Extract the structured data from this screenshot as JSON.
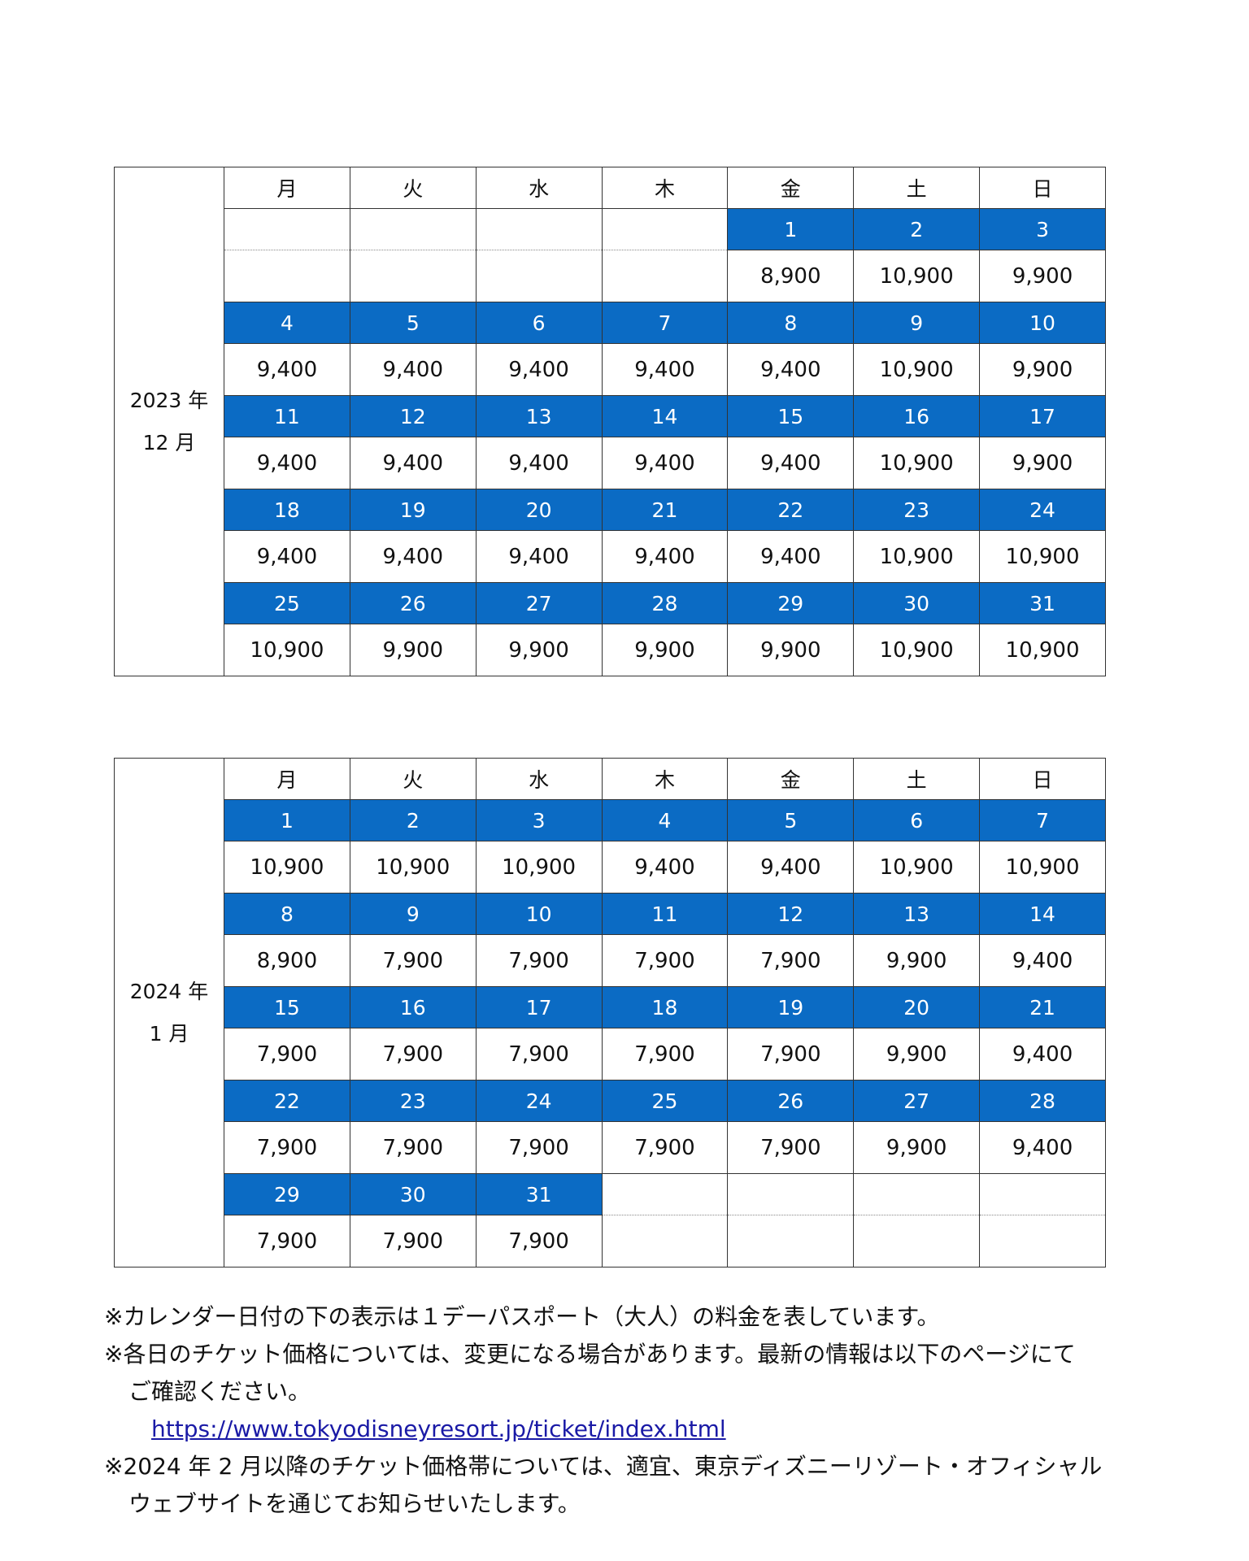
{
  "weekdays": [
    "月",
    "火",
    "水",
    "木",
    "金",
    "土",
    "日"
  ],
  "calendars": [
    {
      "label_year": "2023 年",
      "label_month": "12 月",
      "weeks": [
        [
          null,
          null,
          null,
          null,
          {
            "day": "1",
            "price": "8,900"
          },
          {
            "day": "2",
            "price": "10,900"
          },
          {
            "day": "3",
            "price": "9,900"
          }
        ],
        [
          {
            "day": "4",
            "price": "9,400"
          },
          {
            "day": "5",
            "price": "9,400"
          },
          {
            "day": "6",
            "price": "9,400"
          },
          {
            "day": "7",
            "price": "9,400"
          },
          {
            "day": "8",
            "price": "9,400"
          },
          {
            "day": "9",
            "price": "10,900"
          },
          {
            "day": "10",
            "price": "9,900"
          }
        ],
        [
          {
            "day": "11",
            "price": "9,400"
          },
          {
            "day": "12",
            "price": "9,400"
          },
          {
            "day": "13",
            "price": "9,400"
          },
          {
            "day": "14",
            "price": "9,400"
          },
          {
            "day": "15",
            "price": "9,400"
          },
          {
            "day": "16",
            "price": "10,900"
          },
          {
            "day": "17",
            "price": "9,900"
          }
        ],
        [
          {
            "day": "18",
            "price": "9,400"
          },
          {
            "day": "19",
            "price": "9,400"
          },
          {
            "day": "20",
            "price": "9,400"
          },
          {
            "day": "21",
            "price": "9,400"
          },
          {
            "day": "22",
            "price": "9,400"
          },
          {
            "day": "23",
            "price": "10,900"
          },
          {
            "day": "24",
            "price": "10,900"
          }
        ],
        [
          {
            "day": "25",
            "price": "10,900"
          },
          {
            "day": "26",
            "price": "9,900"
          },
          {
            "day": "27",
            "price": "9,900"
          },
          {
            "day": "28",
            "price": "9,900"
          },
          {
            "day": "29",
            "price": "9,900"
          },
          {
            "day": "30",
            "price": "10,900"
          },
          {
            "day": "31",
            "price": "10,900"
          }
        ]
      ]
    },
    {
      "label_year": "2024 年",
      "label_month": "1 月",
      "weeks": [
        [
          {
            "day": "1",
            "price": "10,900"
          },
          {
            "day": "2",
            "price": "10,900"
          },
          {
            "day": "3",
            "price": "10,900"
          },
          {
            "day": "4",
            "price": "9,400"
          },
          {
            "day": "5",
            "price": "9,400"
          },
          {
            "day": "6",
            "price": "10,900"
          },
          {
            "day": "7",
            "price": "10,900"
          }
        ],
        [
          {
            "day": "8",
            "price": "8,900"
          },
          {
            "day": "9",
            "price": "7,900"
          },
          {
            "day": "10",
            "price": "7,900"
          },
          {
            "day": "11",
            "price": "7,900"
          },
          {
            "day": "12",
            "price": "7,900"
          },
          {
            "day": "13",
            "price": "9,900"
          },
          {
            "day": "14",
            "price": "9,400"
          }
        ],
        [
          {
            "day": "15",
            "price": "7,900"
          },
          {
            "day": "16",
            "price": "7,900"
          },
          {
            "day": "17",
            "price": "7,900"
          },
          {
            "day": "18",
            "price": "7,900"
          },
          {
            "day": "19",
            "price": "7,900"
          },
          {
            "day": "20",
            "price": "9,900"
          },
          {
            "day": "21",
            "price": "9,400"
          }
        ],
        [
          {
            "day": "22",
            "price": "7,900"
          },
          {
            "day": "23",
            "price": "7,900"
          },
          {
            "day": "24",
            "price": "7,900"
          },
          {
            "day": "25",
            "price": "7,900"
          },
          {
            "day": "26",
            "price": "7,900"
          },
          {
            "day": "27",
            "price": "9,900"
          },
          {
            "day": "28",
            "price": "9,400"
          }
        ],
        [
          {
            "day": "29",
            "price": "7,900"
          },
          {
            "day": "30",
            "price": "7,900"
          },
          {
            "day": "31",
            "price": "7,900"
          },
          null,
          null,
          null,
          null
        ]
      ]
    }
  ],
  "notes": {
    "note1": "※カレンダー日付の下の表示は１デーパスポート（大人）の料金を表しています。",
    "note2_line1": "※各日のチケット価格については、変更になる場合があります。最新の情報は以下のページにて",
    "note2_line2": "ご確認ください。",
    "link": "https://www.tokyodisneyresort.jp/ticket/index.html",
    "note3_line1": "※2024 年 2 月以降のチケット価格帯については、適宜、東京ディズニーリゾート・オフィシャル",
    "note3_line2": "ウェブサイトを通じてお知らせいたします。"
  },
  "colors": {
    "date_bg": "#0b6bc4",
    "link": "#1a1aa6"
  }
}
